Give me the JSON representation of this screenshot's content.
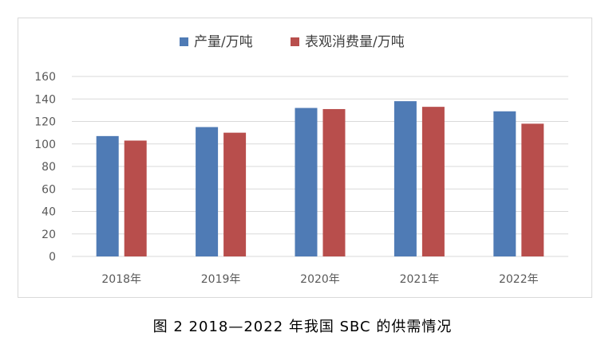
{
  "caption": "图 2  2018—2022 年我国 SBC 的供需情况",
  "chart_data": {
    "type": "bar",
    "categories": [
      "2018年",
      "2019年",
      "2020年",
      "2021年",
      "2022年"
    ],
    "series": [
      {
        "name": "产量/万吨",
        "color": "#4f7bb5",
        "values": [
          107,
          115,
          132,
          138,
          129
        ]
      },
      {
        "name": "表观消费量/万吨",
        "color": "#b84e4c",
        "values": [
          103,
          110,
          131,
          133,
          118
        ]
      }
    ],
    "ylim": [
      0,
      160
    ],
    "yticks": [
      0,
      20,
      40,
      60,
      80,
      100,
      120,
      140,
      160
    ],
    "grid": true,
    "legend_position": "top-center",
    "title": "",
    "xlabel": "",
    "ylabel": ""
  }
}
